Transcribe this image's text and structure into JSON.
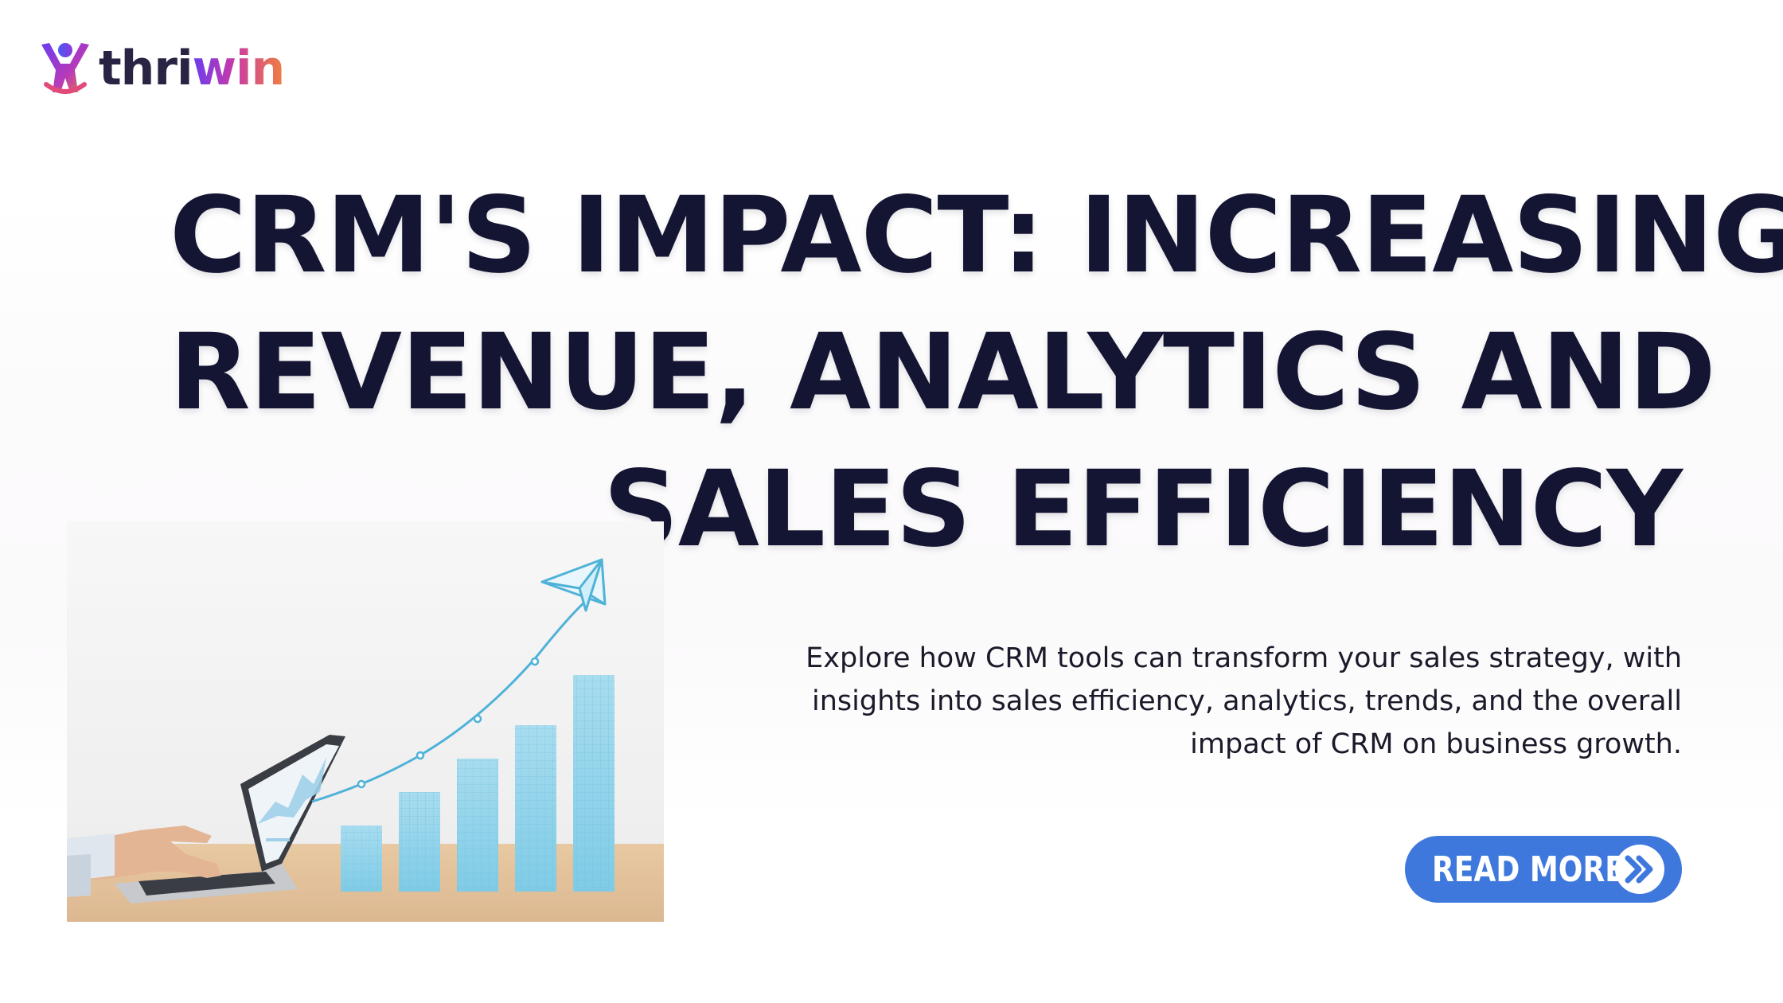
{
  "logo": {
    "text_dark": "thri",
    "text_gradient": "win",
    "icon": "person-cheer-icon",
    "colors": {
      "dark": "#2a2444",
      "gradient_start": "#6a3cf0",
      "gradient_mid": "#c83aa8",
      "gradient_end": "#f08040"
    }
  },
  "headline": {
    "line1": "CRM'S IMPACT: INCREASING",
    "line2": "REVENUE, ANALYTICS AND",
    "line3": "SALES EFFICIENCY",
    "color": "#141532"
  },
  "description": {
    "line1": "Explore how CRM tools can transform your sales strategy, with",
    "line2": "insights into sales efficiency, analytics, trends, and the overall",
    "line3": "impact of CRM on business growth."
  },
  "cta": {
    "label": "READ MORE",
    "icon": "double-chevron-right-icon",
    "color": "#3f78dc"
  },
  "illustration": {
    "icons": [
      "laptop-icon",
      "bar-growth-chart-icon",
      "paper-plane-icon"
    ],
    "bar_levels": [
      0.3,
      0.46,
      0.6,
      0.75,
      0.97
    ]
  }
}
